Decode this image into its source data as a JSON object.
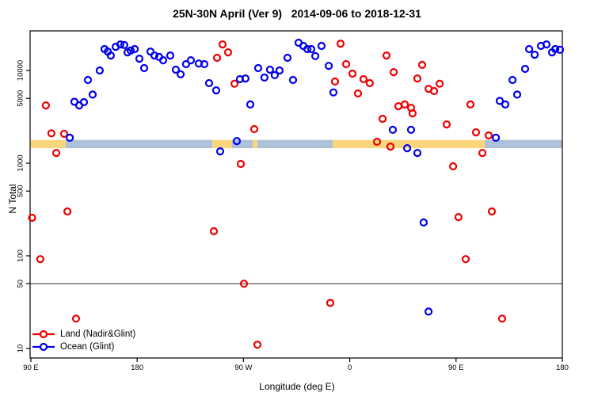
{
  "chart_data": {
    "type": "scatter",
    "title": "25N-30N April (Ver 9)   2014-09-06 to 2018-12-31",
    "xlabel": "Longitude (deg E)",
    "ylabel": "N Total",
    "x_axis": {
      "note": "degrees eastward from 90E, axis wraps past 180 through 90W, 0, 90E to 180",
      "range_deg": [
        0,
        450
      ],
      "ticks": [
        {
          "deg": 0,
          "label": "90 E"
        },
        {
          "deg": 90,
          "label": "180"
        },
        {
          "deg": 180,
          "label": "90 W"
        },
        {
          "deg": 270,
          "label": "0"
        },
        {
          "deg": 360,
          "label": "90 E"
        },
        {
          "deg": 450,
          "label": "180"
        }
      ]
    },
    "y_axis": {
      "scale": "log10",
      "range": [
        10,
        28000
      ],
      "ticks": [
        {
          "v": 10,
          "label": "10"
        },
        {
          "v": 50,
          "label": "50"
        },
        {
          "v": 100,
          "label": "100"
        },
        {
          "v": 500,
          "label": "500"
        },
        {
          "v": 1000,
          "label": "1000"
        },
        {
          "v": 5000,
          "label": "5000"
        },
        {
          "v": 10000,
          "label": "10000"
        }
      ],
      "reference_line": 50
    },
    "legend_position": "bottom-left",
    "series": [
      {
        "name": "Land (Nadir&Glint)",
        "color": "#ee0000",
        "marker": "open-circle",
        "points": [
          [
            1,
            257
          ],
          [
            8,
            92
          ],
          [
            12.7,
            4200
          ],
          [
            17.4,
            2100
          ],
          [
            21.5,
            1290
          ],
          [
            28.2,
            2070
          ],
          [
            30.9,
            301
          ],
          [
            38.2,
            21
          ],
          [
            154.9,
            184
          ],
          [
            157.6,
            13700
          ],
          [
            162.3,
            19100
          ],
          [
            167,
            15700
          ],
          [
            172.4,
            7200
          ],
          [
            177.7,
            980
          ],
          [
            180.4,
            50
          ],
          [
            189.1,
            2330
          ],
          [
            191.8,
            11
          ],
          [
            253.5,
            31
          ],
          [
            257.5,
            7600
          ],
          [
            262.2,
            19500
          ],
          [
            266.9,
            11700
          ],
          [
            272.3,
            9250
          ],
          [
            277,
            5650
          ],
          [
            281.7,
            8050
          ],
          [
            287,
            7300
          ],
          [
            293.1,
            1700
          ],
          [
            297.8,
            3010
          ],
          [
            301.1,
            14500
          ],
          [
            304.5,
            1510
          ],
          [
            307.2,
            9600
          ],
          [
            311.2,
            4120
          ],
          [
            316.6,
            4300
          ],
          [
            321.9,
            3960
          ],
          [
            323.2,
            3450
          ],
          [
            327.3,
            8200
          ],
          [
            331.3,
            11500
          ],
          [
            336.7,
            6350
          ],
          [
            341.4,
            6000
          ],
          [
            346.1,
            7200
          ],
          [
            352.1,
            2620
          ],
          [
            357.5,
            925
          ],
          [
            362.1,
            262
          ],
          [
            368.2,
            92
          ],
          [
            372.2,
            4300
          ],
          [
            376.9,
            2150
          ],
          [
            382.3,
            1290
          ],
          [
            387.6,
            1990
          ],
          [
            390.3,
            301
          ],
          [
            399,
            21
          ]
        ]
      },
      {
        "name": "Ocean (Glint)",
        "color": "#0000ee",
        "marker": "open-circle",
        "points": [
          [
            32.9,
            1880
          ],
          [
            36.9,
            4600
          ],
          [
            40.9,
            4200
          ],
          [
            44.9,
            4550
          ],
          [
            48.3,
            7900
          ],
          [
            52.3,
            5500
          ],
          [
            58.3,
            10000
          ],
          [
            62.4,
            17000
          ],
          [
            65.1,
            16000
          ],
          [
            67.7,
            14500
          ],
          [
            71.8,
            18000
          ],
          [
            75.8,
            19100
          ],
          [
            79.1,
            18800
          ],
          [
            81.8,
            15700
          ],
          [
            84.5,
            16400
          ],
          [
            87.9,
            17000
          ],
          [
            91.9,
            13400
          ],
          [
            95.9,
            10600
          ],
          [
            101.3,
            16000
          ],
          [
            104.6,
            14500
          ],
          [
            108.6,
            14000
          ],
          [
            112,
            12900
          ],
          [
            118,
            14500
          ],
          [
            122.7,
            10200
          ],
          [
            126.8,
            9100
          ],
          [
            131.4,
            11700
          ],
          [
            135.5,
            12900
          ],
          [
            142.2,
            11900
          ],
          [
            146.9,
            11700
          ],
          [
            150.9,
            7300
          ],
          [
            156.9,
            6100
          ],
          [
            160.3,
            1340
          ],
          [
            174.4,
            1730
          ],
          [
            177,
            8050
          ],
          [
            181.7,
            8200
          ],
          [
            185.8,
            4300
          ],
          [
            192.5,
            10600
          ],
          [
            197.8,
            8400
          ],
          [
            202.5,
            10200
          ],
          [
            206.5,
            8900
          ],
          [
            210.6,
            10000
          ],
          [
            217.3,
            13700
          ],
          [
            222,
            7900
          ],
          [
            226.7,
            19900
          ],
          [
            230.7,
            18400
          ],
          [
            234.1,
            17000
          ],
          [
            237.4,
            17000
          ],
          [
            240.8,
            14300
          ],
          [
            246.1,
            18400
          ],
          [
            252.2,
            11200
          ],
          [
            256.2,
            5800
          ],
          [
            306.5,
            2290
          ],
          [
            318.6,
            1450
          ],
          [
            321.9,
            2290
          ],
          [
            327.3,
            1290
          ],
          [
            332.6,
            229
          ],
          [
            336.7,
            25
          ],
          [
            393.7,
            1880
          ],
          [
            397,
            4700
          ],
          [
            401.7,
            4300
          ],
          [
            407.8,
            7900
          ],
          [
            411.8,
            5500
          ],
          [
            418.5,
            10400
          ],
          [
            421.9,
            17000
          ],
          [
            426.6,
            14800
          ],
          [
            431.9,
            18400
          ],
          [
            436.6,
            19100
          ],
          [
            441.3,
            15700
          ],
          [
            444,
            17000
          ],
          [
            448,
            16700
          ]
        ]
      }
    ],
    "surface_band": {
      "description": "land/ocean surface strip along longitude",
      "y_from": 1450,
      "y_to": 1780,
      "land_color": "#fcd67c",
      "ocean_color": "#aec1da",
      "segments": [
        {
          "surface": "land",
          "from_deg": 0,
          "to_deg": 29.5
        },
        {
          "surface": "ocean",
          "from_deg": 29.5,
          "to_deg": 153.6
        },
        {
          "surface": "land",
          "from_deg": 153.6,
          "to_deg": 170.3
        },
        {
          "surface": "ocean",
          "from_deg": 170.3,
          "to_deg": 187.8
        },
        {
          "surface": "land",
          "from_deg": 187.8,
          "to_deg": 191.8
        },
        {
          "surface": "ocean",
          "from_deg": 191.8,
          "to_deg": 255.5
        },
        {
          "surface": "land",
          "from_deg": 255.5,
          "to_deg": 384.3
        },
        {
          "surface": "ocean",
          "from_deg": 384.3,
          "to_deg": 450
        }
      ]
    }
  }
}
